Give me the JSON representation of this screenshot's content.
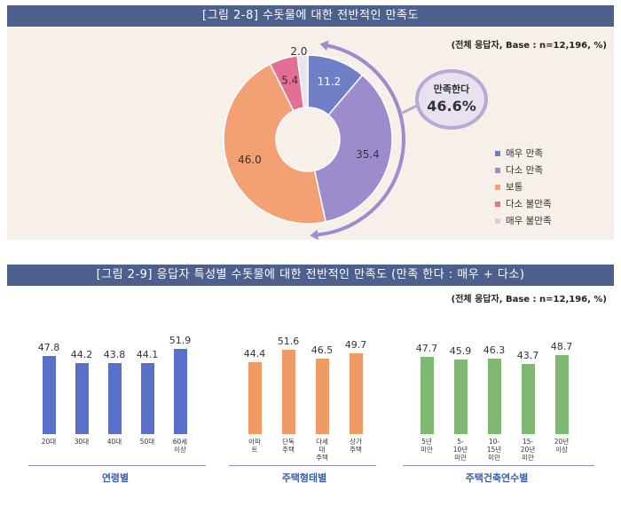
{
  "figure1": {
    "title": "[그림 2-8] 수돗물에 대한 전반적인 만족도",
    "base_note": "(전체 응답자, Base : n=12,196, %)",
    "bubble": {
      "label": "만족한다",
      "value": "46.6%"
    },
    "colors": {
      "매우 만족": "#6f7fc5",
      "다소 만족": "#9c8ccd",
      "보통": "#f2a074",
      "다소 불만족": "#e36f96",
      "매우 불만족": "#e9e4ea"
    }
  },
  "figure2": {
    "title": "[그림 2-9] 응답자 특성별 수돗물에 대한 전반적인 만족도 (만족 한다 : 매우 + 다소)",
    "base_note": "(전체 응답자, Base : n=12,196, %)",
    "group_labels": [
      "연령별",
      "주택형태별",
      "주택건축연수별"
    ],
    "colors": {
      "연령별": "#5a70c8",
      "주택형태별": "#f09a66",
      "주택건축연수별": "#7fb873"
    }
  },
  "chart_data": [
    {
      "type": "pie",
      "donut": true,
      "title": "[그림 2-8] 수돗물에 대한 전반적인 만족도",
      "categories": [
        "매우 만족",
        "다소 만족",
        "보통",
        "다소 불만족",
        "매우 불만족"
      ],
      "values": [
        11.2,
        35.4,
        46.0,
        5.4,
        2.0
      ],
      "value_labels": [
        "11.2",
        "35.4",
        "46.0",
        "5.4",
        "2.0"
      ],
      "legend": "right"
    },
    {
      "type": "bar",
      "title": "[그림 2-9] 응답자 특성별 수돗물에 대한 전반적인 만족도 (만족 한다 : 매우 + 다소)",
      "groups": [
        {
          "name": "연령별",
          "categories": [
            "20대",
            "30대",
            "40대",
            "50대",
            "60세\n이상"
          ],
          "values": [
            47.8,
            44.2,
            43.8,
            44.1,
            51.9
          ],
          "value_labels": [
            "47.8",
            "44.2",
            "43.8",
            "44.1",
            "51.9"
          ]
        },
        {
          "name": "주택형태별",
          "categories": [
            "아파\n트",
            "단독\n주택",
            "다세\n대\n주택",
            "상가\n주택"
          ],
          "values": [
            44.4,
            51.6,
            46.5,
            49.7
          ],
          "value_labels": [
            "44.4",
            "51.6",
            "46.5",
            "49.7"
          ]
        },
        {
          "name": "주택건축연수별",
          "categories": [
            "5년\n미만",
            "5-\n10년\n미만",
            "10-\n15년\n미만",
            "15-\n20년\n미만",
            "20년\n이상"
          ],
          "values": [
            47.7,
            45.9,
            46.3,
            43.7,
            48.7
          ],
          "value_labels": [
            "47.7",
            "45.9",
            "46.3",
            "43.7",
            "48.7"
          ]
        }
      ]
    }
  ]
}
